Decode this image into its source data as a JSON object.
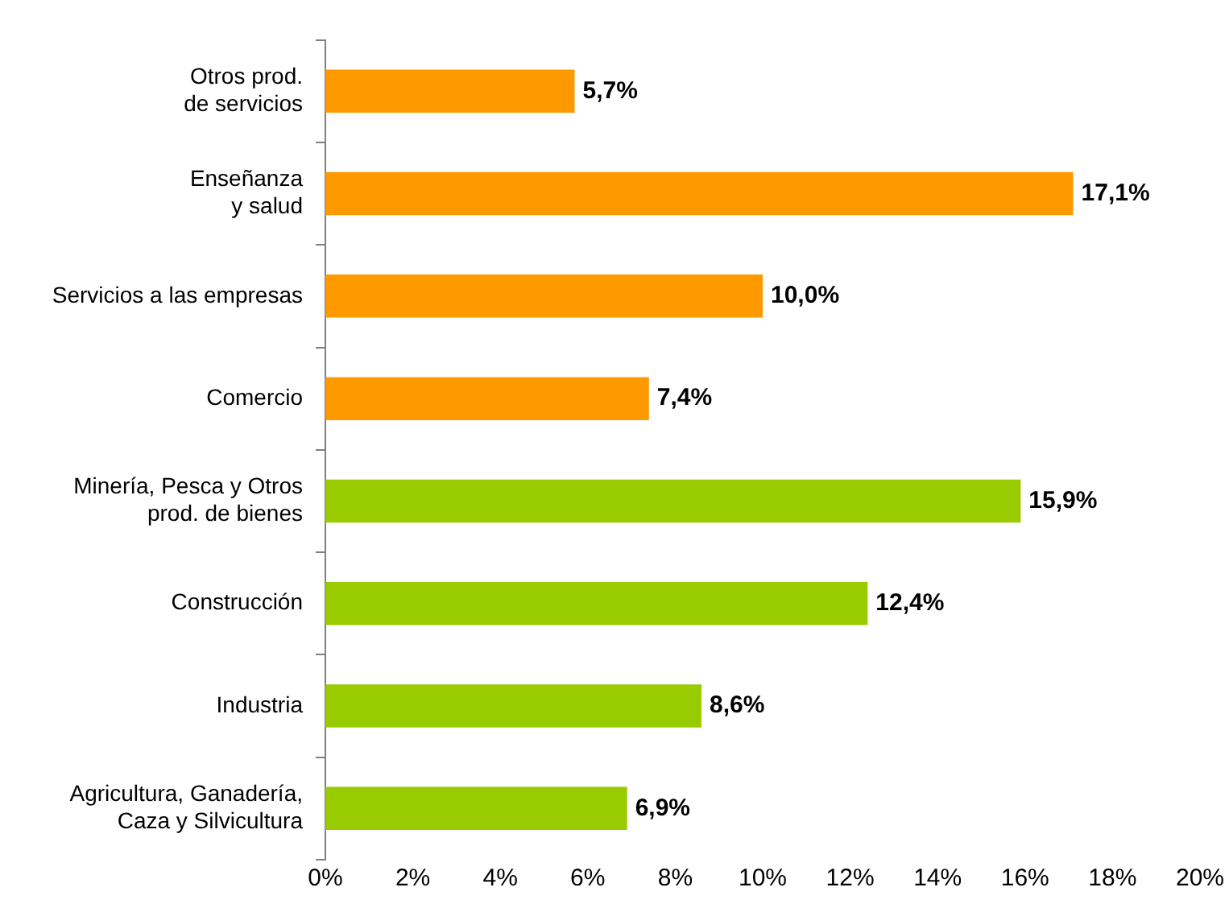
{
  "chart_data": {
    "type": "bar",
    "orientation": "horizontal",
    "categories": [
      "Otros prod.\nde servicios",
      "Enseñanza\ny salud",
      "Servicios a las empresas",
      "Comercio",
      "Minería, Pesca y Otros\nprod. de bienes",
      "Construcción",
      "Industria",
      "Agricultura, Ganadería,\nCaza y Silvicultura"
    ],
    "values": [
      5.7,
      17.1,
      10.0,
      7.4,
      15.9,
      12.4,
      8.6,
      6.9
    ],
    "colors": [
      "#ff9900",
      "#ff9900",
      "#ff9900",
      "#ff9900",
      "#99cc00",
      "#99cc00",
      "#99cc00",
      "#99cc00"
    ],
    "value_labels": [
      "5,7%",
      "17,1%",
      "10,0%",
      "7,4%",
      "15,9%",
      "12,4%",
      "8,6%",
      "6,9%"
    ],
    "xlim": [
      0,
      20
    ],
    "xticks": [
      {
        "value": 0,
        "label": "0%"
      },
      {
        "value": 2,
        "label": "2%"
      },
      {
        "value": 4,
        "label": "4%"
      },
      {
        "value": 6,
        "label": "6%"
      },
      {
        "value": 8,
        "label": "8%"
      },
      {
        "value": 10,
        "label": "10%"
      },
      {
        "value": 12,
        "label": "12%"
      },
      {
        "value": 14,
        "label": "14%"
      },
      {
        "value": 16,
        "label": "16%"
      },
      {
        "value": 18,
        "label": "18%"
      },
      {
        "value": 20,
        "label": "20%"
      }
    ],
    "grid": false,
    "legend": false
  }
}
